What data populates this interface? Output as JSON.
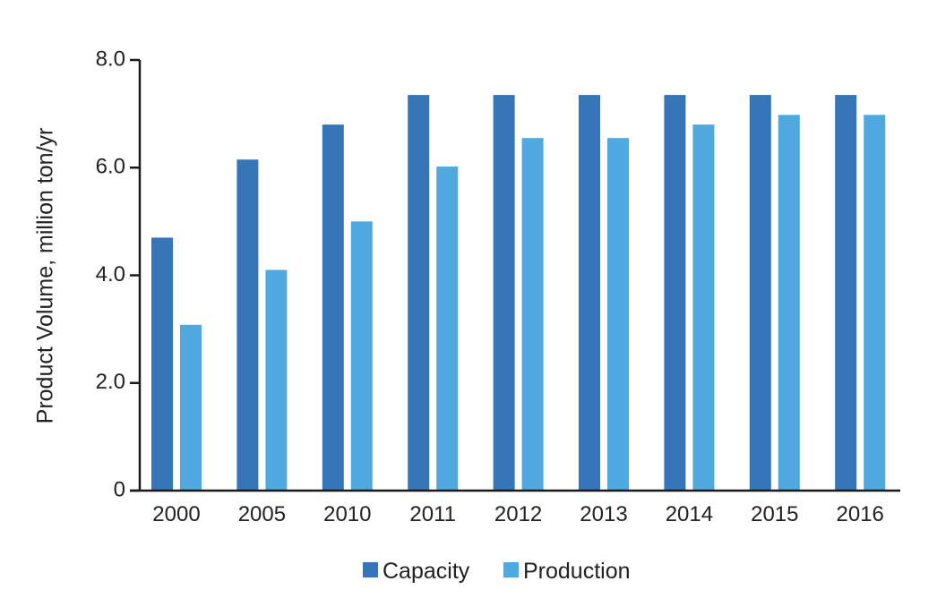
{
  "chart_data": {
    "type": "bar",
    "title": "",
    "xlabel": "",
    "ylabel": "Product Volume, million ton/yr",
    "categories": [
      "2000",
      "2005",
      "2010",
      "2011",
      "2012",
      "2013",
      "2014",
      "2015",
      "2016"
    ],
    "series": [
      {
        "name": "Capacity",
        "color": "#3675b8",
        "values": [
          4.7,
          6.15,
          6.8,
          7.35,
          7.35,
          7.35,
          7.35,
          7.35,
          7.35
        ]
      },
      {
        "name": "Production",
        "color": "#4fa9de",
        "values": [
          3.08,
          4.1,
          5.0,
          6.02,
          6.55,
          6.55,
          6.8,
          6.98,
          6.98
        ]
      }
    ],
    "ylim": [
      0,
      8.0
    ],
    "yticks": [
      {
        "value": 0,
        "label": "0"
      },
      {
        "value": 2.0,
        "label": "2.0"
      },
      {
        "value": 4.0,
        "label": "4.0"
      },
      {
        "value": 6.0,
        "label": "6.0"
      },
      {
        "value": 8.0,
        "label": "8.0"
      }
    ],
    "grid": false,
    "legend_position": "bottom-center"
  }
}
